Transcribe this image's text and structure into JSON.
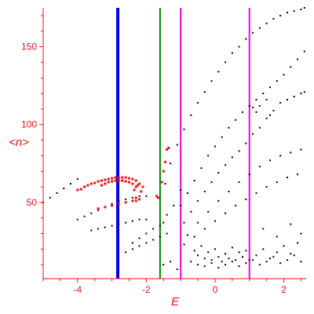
{
  "chart_data": {
    "type": "scatter",
    "title": "",
    "xlabel": "E",
    "ylabel": "<n>",
    "xlim": [
      -5.0,
      2.65
    ],
    "ylim": [
      1,
      175
    ],
    "x_ticks": [
      -4,
      -2,
      0,
      2
    ],
    "x_tick_labels": [
      "-4",
      "-2",
      "0",
      "2"
    ],
    "y_ticks": [
      50,
      100,
      150
    ],
    "y_tick_labels": [
      "50",
      "100",
      "150"
    ],
    "grid": false,
    "legend": "none",
    "colors": {
      "axes": "#ee1111",
      "points_black": "#000000",
      "points_red": "#ee1111",
      "line_blue": "#0000ee",
      "line_green": "#008800",
      "line_magenta": "#ee00ee"
    },
    "vertical_lines": [
      {
        "x": -2.83,
        "color": "#0000ee"
      },
      {
        "x": -1.6,
        "color": "#008800"
      },
      {
        "x": -1.0,
        "color": "#ee00ee"
      },
      {
        "x": 1.0,
        "color": "#ee00ee"
      }
    ],
    "series": [
      {
        "color": "#000000",
        "x": [
          -5.0,
          -4.8,
          -4.6,
          -4.4,
          -4.2,
          -4.0
        ],
        "y": [
          50,
          53,
          56,
          59,
          62,
          65
        ]
      },
      {
        "color": "#000000",
        "x": [
          -4.0,
          -3.8,
          -3.6,
          -3.4,
          -3.2,
          -3.0,
          -2.8,
          -2.6,
          -2.4,
          -2.2,
          -2.0
        ],
        "y": [
          39,
          41,
          43,
          45,
          47,
          49,
          51,
          52,
          53,
          54,
          54
        ]
      },
      {
        "color": "#000000",
        "x": [
          -3.6,
          -3.4,
          -3.2,
          -3.0,
          -2.8,
          -2.6,
          -2.4,
          -2.2,
          -2.0
        ],
        "y": [
          32,
          33,
          34,
          35,
          36,
          37,
          38,
          39,
          39
        ]
      },
      {
        "color": "#000000",
        "x": [
          -2.4,
          -2.2,
          -2.0,
          -1.8,
          -1.6
        ],
        "y": [
          24,
          27,
          30,
          33,
          35
        ]
      },
      {
        "color": "#000000",
        "x": [
          -1.45,
          -1.3,
          -1.1,
          -0.9,
          -0.7,
          -0.5,
          -0.3,
          -0.1,
          0.1,
          0.3,
          0.5,
          0.7,
          0.9,
          1.1,
          1.3,
          1.5,
          1.7,
          1.9,
          2.1,
          2.3,
          2.5,
          2.6
        ],
        "y": [
          62,
          75,
          87,
          97,
          106,
          114,
          121,
          128,
          134,
          140,
          146,
          150,
          155,
          159,
          162,
          165,
          168,
          170,
          172,
          173,
          174,
          175
        ]
      },
      {
        "color": "#000000",
        "x": [
          -1.0,
          -0.8,
          -0.6,
          -0.4,
          -0.2,
          0.0,
          0.2,
          0.4,
          0.6,
          0.8,
          1.0,
          1.2,
          1.4,
          1.6,
          1.8,
          2.0,
          2.2,
          2.4,
          2.6
        ],
        "y": [
          48,
          56,
          64,
          72,
          80,
          86,
          92,
          98,
          103,
          108,
          112,
          116,
          120,
          124,
          128,
          132,
          137,
          142,
          147
        ]
      },
      {
        "color": "#000000",
        "x": [
          -0.9,
          -0.7,
          -0.5,
          -0.3,
          -0.1,
          0.1,
          0.3,
          0.5,
          0.7,
          0.9,
          1.1,
          1.3,
          1.5,
          1.7,
          1.9,
          2.1,
          2.3,
          2.5,
          2.6
        ],
        "y": [
          37,
          44,
          51,
          57,
          63,
          69,
          74,
          79,
          83,
          88,
          94,
          98,
          104,
          109,
          114,
          116,
          118,
          120,
          121
        ]
      },
      {
        "color": "#000000",
        "x": [
          -0.8,
          -0.5,
          -0.2,
          0.1,
          0.4,
          0.7,
          1.0,
          1.3,
          1.6,
          1.9,
          2.2,
          2.5
        ],
        "y": [
          29,
          37,
          44,
          51,
          57,
          63,
          68,
          73,
          77,
          80,
          82,
          84
        ]
      },
      {
        "color": "#000000",
        "x": [
          -0.9,
          -0.6,
          -0.3,
          0.0,
          0.3,
          0.6,
          0.9,
          1.2,
          1.5,
          1.8,
          2.1,
          2.4
        ],
        "y": [
          23,
          28,
          33,
          38,
          43,
          48,
          52,
          56,
          60,
          63,
          66,
          68
        ]
      },
      {
        "color": "#000000",
        "x": [
          -2.6,
          -2.4,
          -2.2,
          -2.0,
          -1.8,
          -1.6,
          -1.4
        ],
        "y": [
          18,
          20,
          22,
          24,
          26,
          28,
          30
        ]
      },
      {
        "color": "#000000",
        "x": [
          -0.6,
          -0.5,
          -0.4,
          -0.3,
          -0.2,
          -0.1,
          0.0,
          0.1,
          0.2,
          0.3,
          0.4,
          0.5,
          0.6,
          0.7,
          0.8,
          0.9,
          1.0,
          1.2,
          1.4,
          1.6,
          1.8,
          2.0,
          2.2,
          2.4
        ],
        "y": [
          19,
          16,
          22,
          14,
          18,
          13,
          20,
          15,
          12,
          17,
          14,
          21,
          13,
          18,
          15,
          19,
          13,
          16,
          20,
          14,
          18,
          22,
          17,
          24
        ]
      },
      {
        "color": "#000000",
        "x": [
          -0.7,
          -0.5,
          -0.3,
          -0.1,
          0.1,
          0.3,
          0.5,
          0.7,
          0.9,
          1.1,
          1.3,
          1.5,
          1.7,
          1.9,
          2.1,
          2.3,
          2.5
        ],
        "y": [
          12,
          10,
          9,
          11,
          8,
          10,
          12,
          9,
          11,
          13,
          10,
          12,
          15,
          11,
          13,
          16,
          12
        ]
      },
      {
        "color": "#000000",
        "x": [
          -1.5,
          -1.3,
          -1.1,
          1.4,
          1.8,
          2.2,
          2.5
        ],
        "y": [
          10,
          12,
          7,
          33,
          28,
          36,
          30
        ]
      },
      {
        "color": "#000000",
        "x": [
          -1.5,
          -1.4,
          -1.2,
          -1.0,
          1.1,
          1.2,
          1.3,
          1.5,
          1.6
        ],
        "y": [
          37,
          42,
          48,
          58,
          111,
          108,
          112,
          116,
          106
        ]
      },
      {
        "color": "#ee1111",
        "x": [
          -4.0,
          -3.9,
          -3.8,
          -3.7,
          -3.6,
          -3.5,
          -3.4,
          -3.3,
          -3.2,
          -3.1,
          -3.0,
          -2.9,
          -2.8,
          -2.7,
          -2.6,
          -2.5,
          -2.4,
          -2.3,
          -2.2
        ],
        "y": [
          58,
          58.5,
          60,
          61,
          62,
          62.5,
          63.5,
          64,
          64.5,
          65,
          65.5,
          66,
          66,
          66,
          66,
          65.5,
          65,
          64,
          62
        ]
      },
      {
        "color": "#ee1111",
        "x": [
          -3.3,
          -3.2,
          -3.1,
          -3.0,
          -2.9,
          -2.8,
          -2.7,
          -2.6,
          -2.5,
          -2.4
        ],
        "y": [
          61,
          62,
          63,
          63.5,
          64,
          64,
          64,
          63.5,
          63,
          62
        ]
      },
      {
        "color": "#ee1111",
        "x": [
          -3.4,
          -3.2,
          -3.0,
          -2.8,
          -2.6,
          -2.4,
          -2.2,
          -2.15,
          -2.1
        ],
        "y": [
          46,
          47,
          48,
          49,
          50,
          51,
          52,
          57,
          60
        ]
      },
      {
        "color": "#ee1111",
        "x": [
          -2.35,
          -2.3,
          -2.25,
          -2.3,
          -2.3,
          -1.7,
          -1.65,
          -1.55,
          -1.5,
          -1.45,
          -1.4,
          -1.35
        ],
        "y": [
          58,
          60,
          61,
          53,
          51,
          54,
          53,
          63,
          70,
          76,
          84,
          85
        ]
      }
    ]
  }
}
